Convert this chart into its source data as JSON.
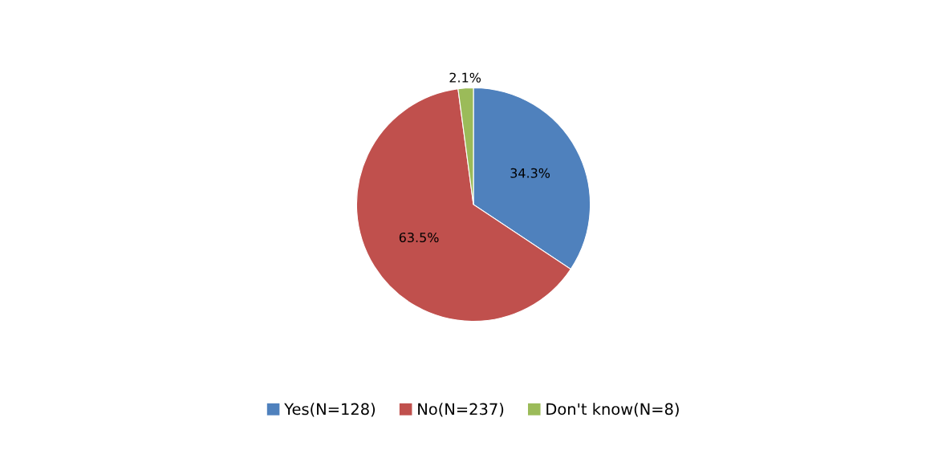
{
  "chart_data": {
    "type": "pie",
    "categories": [
      "Yes(N=128)",
      "No(N=237)",
      "Don't know(N=8)"
    ],
    "values": [
      34.3,
      63.5,
      2.1
    ],
    "colors": [
      "#4f81bd",
      "#c0504d",
      "#9bbb59"
    ],
    "value_labels": [
      "34.3%",
      "63.5%",
      "2.1%"
    ],
    "legend": "bottom"
  }
}
